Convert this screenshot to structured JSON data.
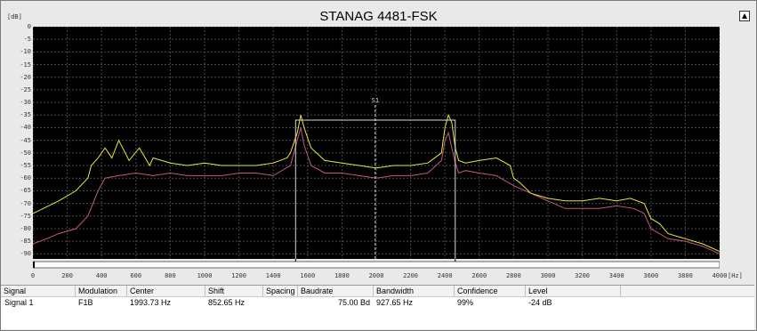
{
  "title": "STANAG 4481-FSK",
  "y_unit": "[dB]",
  "x_unit": "[Hz]",
  "marker_label": "S1",
  "colors": {
    "plot_bg": "#000000",
    "grid": "#4a4a4a",
    "spectrum_peak": "#e8e83a",
    "spectrum_avg": "#c05a7c",
    "marker": "#d8d8d8"
  },
  "chart_data": {
    "type": "line",
    "xlim": [
      0,
      4000
    ],
    "ylim": [
      -92,
      0
    ],
    "x_ticks": [
      0,
      200,
      400,
      600,
      800,
      1000,
      1200,
      1400,
      1600,
      1800,
      2000,
      2200,
      2400,
      2600,
      2800,
      3000,
      3200,
      3400,
      3600,
      3800,
      4000
    ],
    "y_ticks": [
      0,
      -5,
      -10,
      -15,
      -20,
      -25,
      -30,
      -35,
      -40,
      -45,
      -50,
      -55,
      -60,
      -65,
      -70,
      -75,
      -80,
      -85,
      -90
    ],
    "grid": true,
    "series": [
      {
        "color": "yellow",
        "x": [
          0,
          60,
          150,
          250,
          320,
          340,
          380,
          420,
          460,
          500,
          560,
          620,
          680,
          700,
          750,
          800,
          900,
          1000,
          1100,
          1200,
          1300,
          1400,
          1480,
          1500,
          1540,
          1560,
          1580,
          1620,
          1700,
          1800,
          1900,
          2000,
          2100,
          2200,
          2300,
          2380,
          2400,
          2420,
          2440,
          2460,
          2480,
          2520,
          2600,
          2700,
          2780,
          2800,
          2840,
          2900,
          3000,
          3100,
          3200,
          3300,
          3400,
          3480,
          3560,
          3600,
          3650,
          3700,
          3800,
          3900,
          4000
        ],
        "values": [
          -74,
          -72,
          -69,
          -65,
          -60,
          -55,
          -52,
          -48,
          -52,
          -45,
          -53,
          -48,
          -55,
          -52,
          -53,
          -54,
          -55,
          -54,
          -55,
          -55,
          -55,
          -54,
          -52,
          -50,
          -42,
          -35,
          -40,
          -48,
          -53,
          -54,
          -55,
          -56,
          -55,
          -55,
          -54,
          -50,
          -40,
          -35,
          -38,
          -48,
          -53,
          -54,
          -53,
          -52,
          -55,
          -60,
          -62,
          -66,
          -68,
          -69,
          -69,
          -68,
          -69,
          -68,
          -70,
          -76,
          -78,
          -82,
          -84,
          -86,
          -89
        ]
      },
      {
        "color": "magenta",
        "x": [
          0,
          80,
          150,
          250,
          320,
          380,
          420,
          500,
          600,
          700,
          800,
          900,
          1000,
          1100,
          1200,
          1300,
          1400,
          1500,
          1540,
          1560,
          1580,
          1620,
          1700,
          1800,
          1900,
          2000,
          2100,
          2200,
          2300,
          2380,
          2400,
          2420,
          2440,
          2460,
          2480,
          2520,
          2600,
          2700,
          2800,
          2900,
          3000,
          3100,
          3200,
          3300,
          3400,
          3500,
          3560,
          3600,
          3650,
          3700,
          3800,
          3900,
          4000
        ],
        "values": [
          -86,
          -84,
          -82,
          -80,
          -75,
          -65,
          -60,
          -59,
          -58,
          -59,
          -58,
          -59,
          -59,
          -59,
          -58,
          -58,
          -59,
          -55,
          -45,
          -40,
          -47,
          -55,
          -58,
          -58,
          -59,
          -60,
          -59,
          -59,
          -58,
          -53,
          -45,
          -42,
          -48,
          -54,
          -58,
          -57,
          -58,
          -59,
          -63,
          -66,
          -69,
          -72,
          -72,
          -72,
          -71,
          -72,
          -74,
          -80,
          -82,
          -84,
          -85,
          -87,
          -90
        ]
      }
    ],
    "annotations": [
      {
        "type": "band",
        "x_from": 1530,
        "x_to": 2460,
        "y_top": -37
      },
      {
        "type": "vline",
        "x": 1994,
        "label": "S1"
      },
      {
        "type": "tick",
        "x": 1530
      },
      {
        "type": "tick",
        "x": 2460
      }
    ]
  },
  "table": {
    "headers": [
      "Signal",
      "Modulation",
      "Center",
      "Shift",
      "Spacing",
      "Baudrate",
      "Bandwidth",
      "Confidence",
      "Level"
    ],
    "rows": [
      [
        "Signal 1",
        "F1B",
        "1993.73 Hz",
        "852.65 Hz",
        "",
        "75.00 Bd",
        "927.65 Hz",
        "99%",
        "-24 dB"
      ]
    ]
  }
}
